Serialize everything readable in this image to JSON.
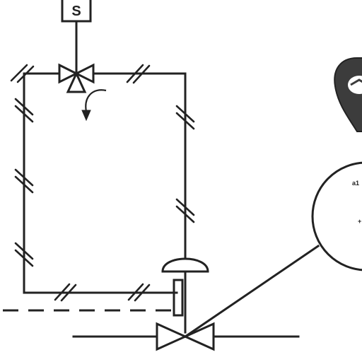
{
  "diagram": {
    "solenoid_label": "S",
    "gauge_text_1": "a1",
    "gauge_text_2": "+"
  }
}
